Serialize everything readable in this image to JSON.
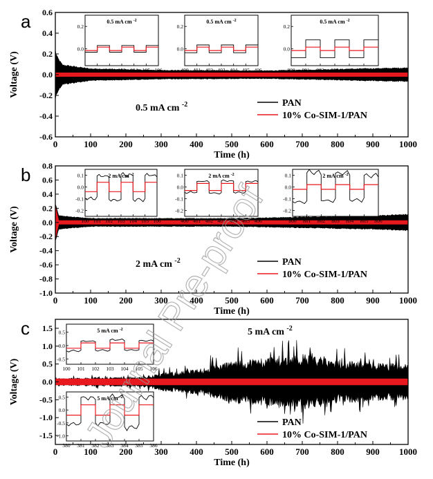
{
  "watermark": "Journal Pre-proof",
  "chart_data": [
    {
      "type": "line",
      "panel_label": "a",
      "current_label": "0.5 mA cm",
      "current_sup": "-2",
      "xlabel": "Time (h)",
      "ylabel": "Voltage (V)",
      "xlim": [
        0,
        1000
      ],
      "ylim": [
        -0.6,
        0.6
      ],
      "xticks": [
        "0",
        "100",
        "200",
        "300",
        "400",
        "500",
        "600",
        "700",
        "800",
        "900",
        "1000"
      ],
      "yticks": [
        "-0.6",
        "-0.4",
        "-0.2",
        "0.0",
        "0.2",
        "0.4",
        "0.6"
      ],
      "legend": {
        "position": "right-lower",
        "entries": [
          "PAN",
          "10% Co-SIM-1/PAN"
        ]
      },
      "series": [
        {
          "name": "PAN",
          "color": "#000000",
          "envelope_x": [
            0,
            5,
            20,
            100,
            300,
            600,
            1000
          ],
          "envelope_amp": [
            0.25,
            0.18,
            0.1,
            0.06,
            0.045,
            0.04,
            0.07
          ]
        },
        {
          "name": "10% Co-SIM-1/PAN",
          "color": "#e8191e",
          "envelope_x": [
            0,
            1000
          ],
          "envelope_amp": [
            0.02,
            0.02
          ]
        }
      ],
      "insets": [
        {
          "label": "0.5 mA cm",
          "sup": "-2",
          "xticks": [
            "100",
            "101",
            "102",
            "103",
            "104",
            "105",
            "106"
          ],
          "yticks": [
            "0.0",
            "0.2"
          ],
          "ylim": [
            -0.15,
            0.3
          ],
          "pan_amp": 0.03,
          "co_amp": 0.015
        },
        {
          "label": "0.5 mA cm",
          "sup": "-2",
          "xticks": [
            "400",
            "401",
            "402",
            "403",
            "404",
            "405",
            "406"
          ],
          "yticks": [
            "0.0",
            "0.2"
          ],
          "ylim": [
            -0.15,
            0.3
          ],
          "pan_amp": 0.035,
          "co_amp": 0.015
        },
        {
          "label": "0.5 mA cm",
          "sup": "-2",
          "xticks": [
            "800",
            "801",
            "802",
            "803",
            "804",
            "805",
            "806"
          ],
          "yticks": [
            "0.0",
            "0.2"
          ],
          "ylim": [
            -0.15,
            0.3
          ],
          "pan_amp": 0.08,
          "co_amp": 0.015
        }
      ]
    },
    {
      "type": "line",
      "panel_label": "b",
      "current_label": "2 mA cm",
      "current_sup": "-2",
      "xlabel": "Time (h)",
      "ylabel": "Voltage (V)",
      "xlim": [
        0,
        1000
      ],
      "ylim": [
        -1.0,
        0.8
      ],
      "xticks": [
        "0",
        "100",
        "200",
        "300",
        "400",
        "500",
        "600",
        "700",
        "800",
        "900",
        "1000"
      ],
      "yticks": [
        "-1.0",
        "-0.8",
        "-0.6",
        "-0.4",
        "-0.2",
        "0.0",
        "0.2",
        "0.4",
        "0.6",
        "0.8"
      ],
      "legend": {
        "position": "right-lower",
        "entries": [
          "PAN",
          "10% Co-SIM-1/PAN"
        ]
      },
      "series": [
        {
          "name": "PAN",
          "color": "#000000",
          "envelope_x": [
            0,
            10,
            100,
            500,
            900,
            1000
          ],
          "envelope_amp": [
            0.3,
            0.1,
            0.06,
            0.06,
            0.1,
            0.12
          ]
        },
        {
          "name": "10% Co-SIM-1/PAN",
          "color": "#e8191e",
          "envelope_x": [
            0,
            10,
            1000
          ],
          "envelope_amp": [
            0.25,
            0.03,
            0.03
          ]
        }
      ],
      "insets": [
        {
          "label": "2 mA cm",
          "sup": "-2",
          "xticks": [
            "100",
            "101",
            "102",
            "103",
            "104",
            "105",
            "106"
          ],
          "yticks": [
            "-0.2",
            "-0.1",
            "0.0",
            "0.1"
          ],
          "ylim": [
            -0.25,
            0.15
          ],
          "pan_amp": 0.1,
          "co_amp": 0.04
        },
        {
          "label": "2 mA cm",
          "sup": "-2",
          "xticks": [
            "400",
            "401",
            "402",
            "403",
            "404",
            "405",
            "406"
          ],
          "yticks": [
            "-0.2",
            "-0.1",
            "0.0",
            "0.1"
          ],
          "ylim": [
            -0.25,
            0.15
          ],
          "pan_amp": 0.05,
          "co_amp": 0.03
        },
        {
          "label": "2 mA cm",
          "sup": "-2",
          "xticks": [
            "800",
            "801",
            "802",
            "803",
            "804",
            "805",
            "806"
          ],
          "yticks": [
            "-0.2",
            "-0.1",
            "0.0",
            "0.1"
          ],
          "ylim": [
            -0.25,
            0.15
          ],
          "pan_amp": 0.12,
          "co_amp": 0.02
        }
      ]
    },
    {
      "type": "line",
      "panel_label": "c",
      "current_label": "5 mA cm",
      "current_sup": "-2",
      "xlabel": "Time (h)",
      "ylabel": "Voltage (V)",
      "xlim": [
        0,
        1000
      ],
      "ylim": [
        -1.75,
        1.75
      ],
      "xticks": [
        "0",
        "100",
        "200",
        "300",
        "400",
        "500",
        "600",
        "700",
        "800",
        "900",
        "1000"
      ],
      "yticks": [
        "-1.5",
        "-1.0",
        "-0.5",
        "0.0",
        "0.5",
        "1.0",
        "1.5"
      ],
      "legend": {
        "position": "right-lower",
        "entries": [
          "PAN",
          "10% Co-SIM-1/PAN"
        ]
      },
      "series": [
        {
          "name": "PAN",
          "color": "#000000",
          "envelope_x": [
            0,
            250,
            300,
            400,
            500,
            600,
            700,
            800,
            900,
            1000
          ],
          "envelope_amp": [
            0.1,
            0.15,
            0.25,
            0.35,
            0.6,
            0.7,
            0.8,
            0.6,
            0.55,
            0.5
          ]
        },
        {
          "name": "10% Co-SIM-1/PAN",
          "color": "#e8191e",
          "envelope_x": [
            0,
            1000
          ],
          "envelope_amp": [
            0.09,
            0.09
          ]
        }
      ],
      "insets": [
        {
          "label": "5 mA cm",
          "sup": "-2",
          "xticks": [
            "100",
            "101",
            "102",
            "103",
            "104",
            "105",
            "106"
          ],
          "yticks": [
            "-0.5",
            "0.0",
            "0.5"
          ],
          "ylim": [
            -0.7,
            0.8
          ],
          "pan_amp": 0.2,
          "co_amp": 0.1
        },
        {
          "label": "5 mA cm",
          "sup": "-2",
          "xticks": [
            "380",
            "381",
            "382",
            "383",
            "384",
            "385",
            "386"
          ],
          "yticks": [
            "-1.0",
            "-0.5",
            "0.0",
            "0.5"
          ],
          "ylim": [
            -1.2,
            0.7
          ],
          "pan_amp": 0.6,
          "co_amp": 0.2
        }
      ]
    }
  ]
}
